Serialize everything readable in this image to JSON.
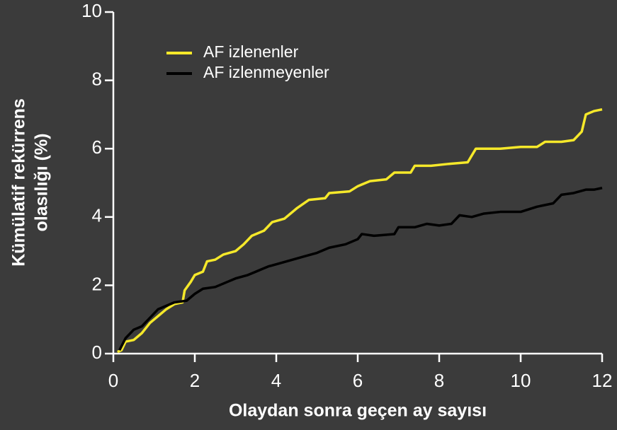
{
  "chart_data": {
    "type": "line",
    "xlabel": "Olaydan sonra geçen ay sayısı",
    "ylabel": [
      "Kümülatif rekürrens",
      "olasılığı (%)"
    ],
    "xlim": [
      0,
      12
    ],
    "xticks": [
      0,
      2,
      4,
      6,
      8,
      10,
      12
    ],
    "ylim": [
      0,
      10
    ],
    "yticks": [
      0,
      2,
      4,
      6,
      8,
      10
    ],
    "legend": "upper left",
    "series": [
      {
        "name": "AF izlenenler",
        "color": "#f5e82a",
        "x": [
          0.1,
          0.2,
          0.3,
          0.5,
          0.7,
          0.9,
          1.1,
          1.3,
          1.5,
          1.7,
          1.75,
          1.9,
          2.0,
          2.2,
          2.3,
          2.5,
          2.7,
          3.0,
          3.2,
          3.4,
          3.7,
          3.9,
          4.2,
          4.5,
          4.8,
          5.2,
          5.3,
          5.8,
          6.0,
          6.3,
          6.7,
          6.9,
          7.3,
          7.4,
          7.8,
          8.2,
          8.7,
          8.9,
          9.5,
          10.0,
          10.4,
          10.6,
          11.0,
          11.3,
          11.5,
          11.6,
          11.8,
          12.0
        ],
        "values": [
          0.05,
          0.1,
          0.35,
          0.4,
          0.6,
          0.9,
          1.1,
          1.3,
          1.45,
          1.5,
          1.85,
          2.1,
          2.3,
          2.4,
          2.7,
          2.75,
          2.9,
          3.0,
          3.2,
          3.45,
          3.6,
          3.85,
          3.95,
          4.25,
          4.5,
          4.55,
          4.7,
          4.75,
          4.9,
          5.05,
          5.1,
          5.3,
          5.3,
          5.5,
          5.5,
          5.55,
          5.6,
          6.0,
          6.0,
          6.05,
          6.05,
          6.2,
          6.2,
          6.25,
          6.5,
          7.0,
          7.1,
          7.15
        ]
      },
      {
        "name": "AF izlenmeyenler",
        "color": "#000000",
        "x": [
          0.15,
          0.3,
          0.5,
          0.7,
          0.9,
          1.1,
          1.3,
          1.5,
          1.8,
          2.0,
          2.2,
          2.5,
          2.8,
          3.0,
          3.3,
          3.5,
          3.8,
          4.1,
          4.4,
          4.7,
          5.0,
          5.3,
          5.7,
          6.0,
          6.1,
          6.4,
          6.9,
          7.0,
          7.4,
          7.7,
          8.0,
          8.3,
          8.5,
          8.8,
          9.1,
          9.5,
          10.0,
          10.4,
          10.8,
          11.0,
          11.3,
          11.6,
          11.8,
          12.0
        ],
        "values": [
          0.1,
          0.45,
          0.7,
          0.8,
          1.05,
          1.3,
          1.4,
          1.5,
          1.55,
          1.75,
          1.9,
          1.95,
          2.1,
          2.2,
          2.3,
          2.4,
          2.55,
          2.65,
          2.75,
          2.85,
          2.95,
          3.1,
          3.2,
          3.35,
          3.5,
          3.45,
          3.5,
          3.7,
          3.7,
          3.8,
          3.75,
          3.8,
          4.05,
          4.0,
          4.1,
          4.15,
          4.15,
          4.3,
          4.4,
          4.65,
          4.7,
          4.8,
          4.8,
          4.85
        ]
      }
    ]
  }
}
